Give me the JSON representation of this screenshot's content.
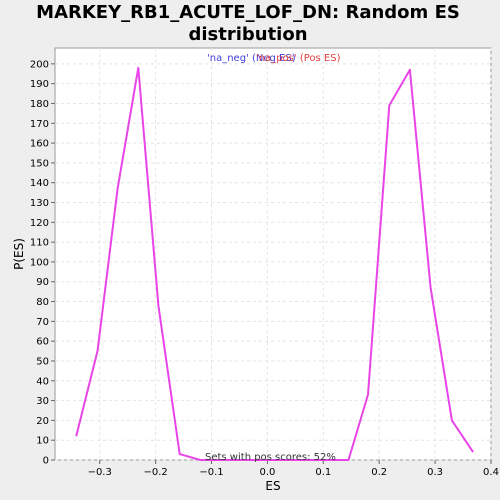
{
  "chart_data": {
    "type": "line",
    "title_line1": "MARKEY_RB1_ACUTE_LOF_DN: Random ES",
    "title_line2": "distribution",
    "xlabel": "ES",
    "ylabel": "P(ES)",
    "xlim": [
      -0.38,
      0.4
    ],
    "ylim": [
      0,
      208
    ],
    "x_ticks": [
      -0.3,
      -0.2,
      -0.1,
      0.0,
      0.1,
      0.2,
      0.3,
      0.4
    ],
    "x_tick_labels": [
      "−0.3",
      "−0.2",
      "−0.1",
      "0.0",
      "0.1",
      "0.2",
      "0.3",
      "0.4"
    ],
    "y_ticks": [
      0,
      10,
      20,
      30,
      40,
      50,
      60,
      70,
      80,
      90,
      100,
      110,
      120,
      130,
      140,
      150,
      160,
      170,
      180,
      190,
      200
    ],
    "grid": true,
    "legend": [
      {
        "label": "'na_neg' (Neg ES)",
        "color": "#4040e0"
      },
      {
        "label": "'na_pos' (Pos ES)",
        "color": "#e04040"
      }
    ],
    "legend_placement": "top-center",
    "line_color": "#e844e8",
    "series": [
      {
        "x": [
          -0.342,
          -0.304,
          -0.268,
          -0.231,
          -0.195,
          -0.157,
          -0.12,
          0.145,
          0.18,
          0.218,
          0.255,
          0.292,
          0.33,
          0.368
        ],
        "y": [
          12,
          55,
          137,
          198,
          78,
          3,
          0,
          0,
          33,
          179,
          197,
          87,
          20,
          4
        ]
      }
    ],
    "annotation": "Sets with pos scores: 52%"
  }
}
